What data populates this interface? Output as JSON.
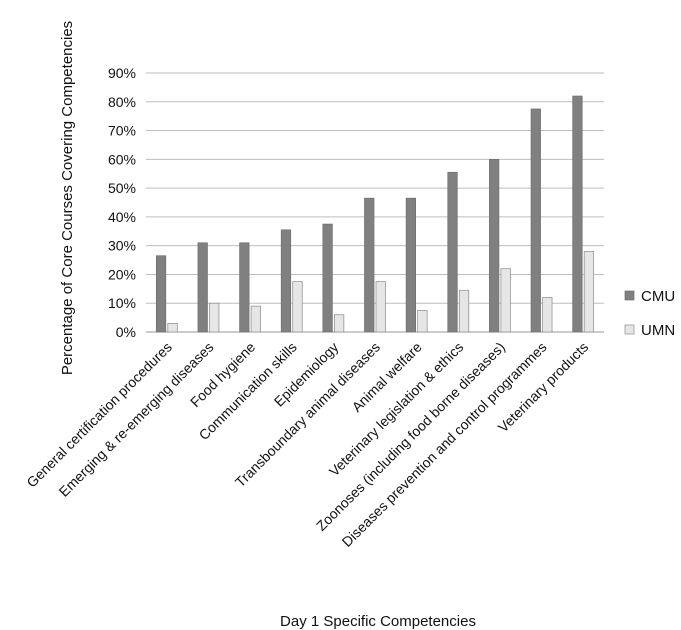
{
  "chart_data": {
    "type": "bar",
    "title": "",
    "xlabel": "Day 1 Specific Competencies",
    "ylabel": "Percentage  of Core Courses Covering Competencies",
    "ylim": [
      0,
      90
    ],
    "yticks": [
      "0%",
      "10%",
      "20%",
      "30%",
      "40%",
      "50%",
      "60%",
      "70%",
      "80%",
      "90%"
    ],
    "grid": "horizontal",
    "legend_position": "right",
    "categories": [
      "General certification procedures",
      "Emerging & re-emerging diseases",
      "Food hygiene",
      "Communication skills",
      "Epidemiology",
      "Transboundary animal diseases",
      "Animal welfare",
      "Veterinary legislation & ethics",
      "Zoonoses (including food borne diseases)",
      "Diseases prevention and control programmes",
      "Veterinary products"
    ],
    "series": [
      {
        "name": "CMU",
        "color": "#808080",
        "values": [
          26.5,
          31,
          31,
          35.5,
          37.5,
          46.5,
          46.5,
          55.5,
          60,
          77.5,
          82
        ]
      },
      {
        "name": "UMN",
        "color": "#e6e6e6",
        "values": [
          3,
          10,
          9,
          17.5,
          6,
          17.5,
          7.5,
          14.5,
          22,
          12,
          28
        ]
      }
    ]
  }
}
